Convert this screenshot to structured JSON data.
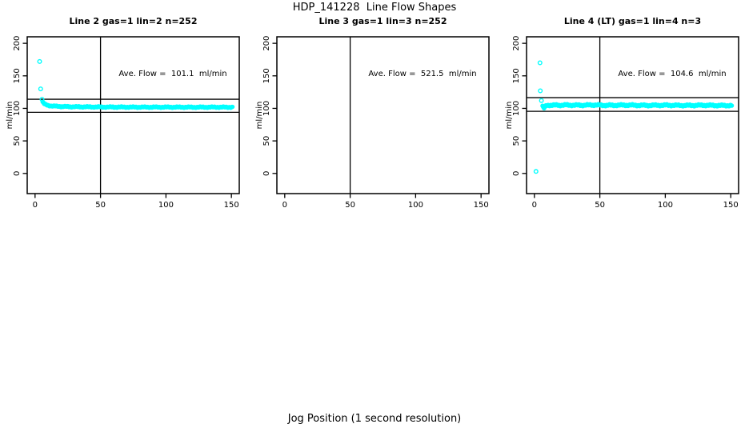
{
  "figure": {
    "title": "HDP_141228  Line Flow Shapes",
    "xlabel": "Jog Position (1 second resolution)"
  },
  "colors": {
    "points": "#00FFFF",
    "axis": "#000000",
    "background": "#FFFFFF"
  },
  "chart_data": [
    {
      "type": "scatter",
      "title": "Line 2 gas=1 lin=2 n=252",
      "annotation": "Ave. Flow =  101.1  ml/min",
      "ave_flow_ml_min": 101.1,
      "n": 252,
      "ylabel": "ml/min",
      "xticks": [
        0,
        50,
        100,
        150
      ],
      "yticks": [
        0,
        50,
        100,
        150,
        200
      ],
      "xlim": [
        -6,
        156
      ],
      "ylim": [
        -31,
        210
      ],
      "vline_x": 50,
      "hlines": [
        114,
        94
      ],
      "marker_color": "#00FFFF",
      "outliers": [
        [
          3.5,
          172
        ],
        [
          4.3,
          130
        ],
        [
          5.3,
          114
        ]
      ],
      "band_spread": 1.0,
      "band": [
        [
          5.8,
          110
        ],
        [
          6.3,
          108.5
        ],
        [
          7,
          107
        ],
        [
          8,
          105.8
        ],
        [
          9.5,
          104.8
        ],
        [
          11,
          104.2
        ],
        [
          13,
          103.7
        ],
        [
          16,
          103.2
        ],
        [
          20,
          102.9
        ],
        [
          26,
          102.6
        ],
        [
          34,
          102.4
        ],
        [
          45,
          102.2
        ],
        [
          60,
          102.0
        ],
        [
          80,
          101.9
        ],
        [
          100,
          101.9
        ],
        [
          120,
          101.8
        ],
        [
          138,
          101.9
        ],
        [
          151,
          101.8
        ]
      ]
    },
    {
      "type": "scatter",
      "title": "Line 3 gas=1 lin=3 n=252",
      "annotation": "Ave. Flow =  521.5  ml/min",
      "ave_flow_ml_min": 521.5,
      "n": 252,
      "ylabel": "ml/min",
      "xticks": [
        0,
        50,
        100,
        150
      ],
      "yticks": [
        0,
        50,
        100,
        150,
        200
      ],
      "xlim": [
        -6,
        156
      ],
      "ylim": [
        -31,
        210
      ],
      "vline_x": 50,
      "hlines": [],
      "marker_color": "#00FFFF",
      "outliers": [],
      "band_spread": 0,
      "band": []
    },
    {
      "type": "scatter",
      "title": "Line 4 (LT) gas=1 lin=4 n=3",
      "annotation": "Ave. Flow =  104.6  ml/min",
      "ave_flow_ml_min": 104.6,
      "n": 3,
      "ylabel": "ml/min",
      "xticks": [
        0,
        50,
        100,
        150
      ],
      "yticks": [
        0,
        50,
        100,
        150,
        200
      ],
      "xlim": [
        -6,
        156
      ],
      "ylim": [
        -31,
        210
      ],
      "vline_x": 50,
      "hlines": [
        116.5,
        95.5
      ],
      "marker_color": "#00FFFF",
      "outliers": [
        [
          1.2,
          3
        ],
        [
          4.3,
          170
        ],
        [
          4.5,
          127
        ],
        [
          5.4,
          112
        ]
      ],
      "band_spread": 1.5,
      "band": [
        [
          6.2,
          104
        ],
        [
          6.8,
          101
        ],
        [
          7.4,
          100.3
        ],
        [
          8.2,
          102.5
        ],
        [
          9.5,
          104.5
        ],
        [
          12,
          105
        ],
        [
          18,
          104.8
        ],
        [
          25,
          105.1
        ],
        [
          35,
          104.8
        ],
        [
          45,
          105.2
        ],
        [
          55,
          104.7
        ],
        [
          70,
          105.0
        ],
        [
          85,
          104.6
        ],
        [
          100,
          104.9
        ],
        [
          115,
          104.5
        ],
        [
          130,
          104.8
        ],
        [
          142,
          104.4
        ],
        [
          151,
          104.5
        ]
      ]
    }
  ]
}
